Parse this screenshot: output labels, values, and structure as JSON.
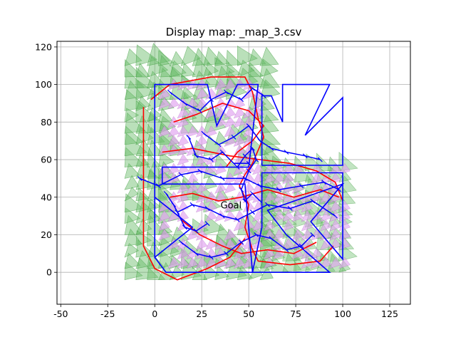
{
  "chart_data": {
    "type": "map",
    "title": "Display map: _map_3.csv",
    "xlabel": "",
    "ylabel": "",
    "xlim": [
      -52,
      136
    ],
    "ylim": [
      -17,
      123
    ],
    "x_ticks": [
      -50,
      -25,
      0,
      25,
      50,
      75,
      100,
      125
    ],
    "y_ticks": [
      0,
      20,
      40,
      60,
      80,
      100,
      120
    ],
    "grid": true,
    "annotations": [
      {
        "text": "Goal",
        "x": 35,
        "y": 34
      }
    ],
    "colors": {
      "obstacle": "#0000ff",
      "path": "#ff0000",
      "tree": "#0000ff",
      "cell_fill": "#e0a0f0",
      "cover_fill": "#66bb66",
      "grid": "#b0b0b0"
    },
    "obstacles": [
      {
        "name": "left-shape",
        "points": [
          [
            0,
            100
          ],
          [
            28,
            100
          ],
          [
            33,
            78
          ],
          [
            44,
            100
          ],
          [
            55,
            100
          ],
          [
            50,
            56
          ],
          [
            4,
            56
          ],
          [
            4,
            47
          ],
          [
            48,
            47
          ],
          [
            52,
            0
          ],
          [
            6,
            0
          ],
          [
            0,
            8
          ],
          [
            0,
            40
          ],
          [
            20,
            24
          ],
          [
            0,
            8
          ]
        ]
      },
      {
        "name": "arrow-upper",
        "points": [
          [
            68,
            100
          ],
          [
            93,
            100
          ],
          [
            80,
            73
          ],
          [
            100,
            93
          ],
          [
            100,
            57
          ],
          [
            57,
            57
          ],
          [
            57,
            94
          ],
          [
            62,
            94
          ],
          [
            68,
            80
          ]
        ]
      },
      {
        "name": "arrow-lower",
        "points": [
          [
            57,
            53
          ],
          [
            100,
            53
          ],
          [
            100,
            7
          ],
          [
            83,
            27
          ],
          [
            100,
            47
          ],
          [
            60,
            33
          ],
          [
            70,
            20
          ],
          [
            93,
            0
          ],
          [
            52,
            0
          ],
          [
            57,
            24
          ]
        ]
      }
    ],
    "path_segments": [
      [
        [
          -2,
          92
        ],
        [
          8,
          100
        ],
        [
          30,
          104
        ],
        [
          48,
          104
        ],
        [
          52,
          96
        ],
        [
          55,
          82
        ],
        [
          58,
          72
        ],
        [
          52,
          58
        ],
        [
          48,
          52
        ],
        [
          45,
          46
        ],
        [
          50,
          36
        ],
        [
          48,
          24
        ],
        [
          52,
          12
        ],
        [
          55,
          6
        ],
        [
          72,
          4
        ],
        [
          88,
          6
        ],
        [
          95,
          14
        ]
      ],
      [
        [
          -6,
          88
        ],
        [
          -6,
          60
        ],
        [
          -6,
          40
        ],
        [
          -6,
          14
        ],
        [
          0,
          2
        ],
        [
          12,
          -4
        ],
        [
          28,
          2
        ],
        [
          40,
          8
        ],
        [
          48,
          18
        ]
      ],
      [
        [
          4,
          64
        ],
        [
          20,
          66
        ],
        [
          40,
          62
        ],
        [
          56,
          60
        ],
        [
          72,
          58
        ],
        [
          86,
          54
        ],
        [
          96,
          48
        ],
        [
          100,
          38
        ]
      ],
      [
        [
          8,
          40
        ],
        [
          20,
          42
        ],
        [
          34,
          38
        ],
        [
          46,
          40
        ],
        [
          60,
          44
        ],
        [
          74,
          40
        ],
        [
          88,
          44
        ],
        [
          98,
          40
        ]
      ],
      [
        [
          10,
          80
        ],
        [
          22,
          84
        ],
        [
          36,
          90
        ],
        [
          50,
          86
        ],
        [
          58,
          78
        ],
        [
          52,
          70
        ],
        [
          44,
          64
        ],
        [
          38,
          56
        ]
      ],
      [
        [
          14,
          28
        ],
        [
          24,
          20
        ],
        [
          36,
          14
        ],
        [
          46,
          10
        ],
        [
          60,
          12
        ],
        [
          74,
          10
        ],
        [
          86,
          16
        ]
      ]
    ],
    "tree_segments": [
      [
        [
          -8,
          50
        ],
        [
          2,
          46
        ],
        [
          14,
          52
        ],
        [
          24,
          54
        ],
        [
          36,
          50
        ],
        [
          48,
          50
        ],
        [
          56,
          46
        ],
        [
          66,
          44
        ],
        [
          78,
          46
        ],
        [
          90,
          48
        ],
        [
          98,
          44
        ]
      ],
      [
        [
          8,
          96
        ],
        [
          16,
          90
        ],
        [
          24,
          86
        ],
        [
          30,
          92
        ],
        [
          38,
          96
        ],
        [
          46,
          92
        ],
        [
          52,
          98
        ],
        [
          58,
          94
        ]
      ],
      [
        [
          26,
          74
        ],
        [
          34,
          68
        ],
        [
          42,
          72
        ],
        [
          50,
          78
        ],
        [
          56,
          70
        ],
        [
          62,
          66
        ],
        [
          70,
          64
        ],
        [
          80,
          62
        ],
        [
          88,
          60
        ]
      ],
      [
        [
          12,
          32
        ],
        [
          20,
          36
        ],
        [
          28,
          34
        ],
        [
          36,
          30
        ],
        [
          44,
          28
        ],
        [
          52,
          32
        ],
        [
          60,
          36
        ],
        [
          72,
          34
        ],
        [
          84,
          38
        ],
        [
          96,
          30
        ]
      ],
      [
        [
          14,
          16
        ],
        [
          22,
          10
        ],
        [
          30,
          8
        ],
        [
          38,
          10
        ],
        [
          46,
          16
        ],
        [
          54,
          20
        ],
        [
          62,
          18
        ],
        [
          70,
          12
        ],
        [
          78,
          14
        ],
        [
          84,
          20
        ]
      ],
      [
        [
          44,
          56
        ],
        [
          48,
          62
        ],
        [
          52,
          66
        ],
        [
          54,
          60
        ],
        [
          50,
          54
        ],
        [
          46,
          44
        ],
        [
          48,
          38
        ],
        [
          52,
          42
        ],
        [
          56,
          38
        ]
      ],
      [
        [
          18,
          72
        ],
        [
          22,
          62
        ],
        [
          30,
          60
        ],
        [
          36,
          64
        ],
        [
          42,
          58
        ],
        [
          50,
          58
        ]
      ],
      [
        [
          6,
          42
        ],
        [
          10,
          36
        ],
        [
          16,
          24
        ],
        [
          22,
          22
        ],
        [
          28,
          26
        ]
      ]
    ]
  }
}
